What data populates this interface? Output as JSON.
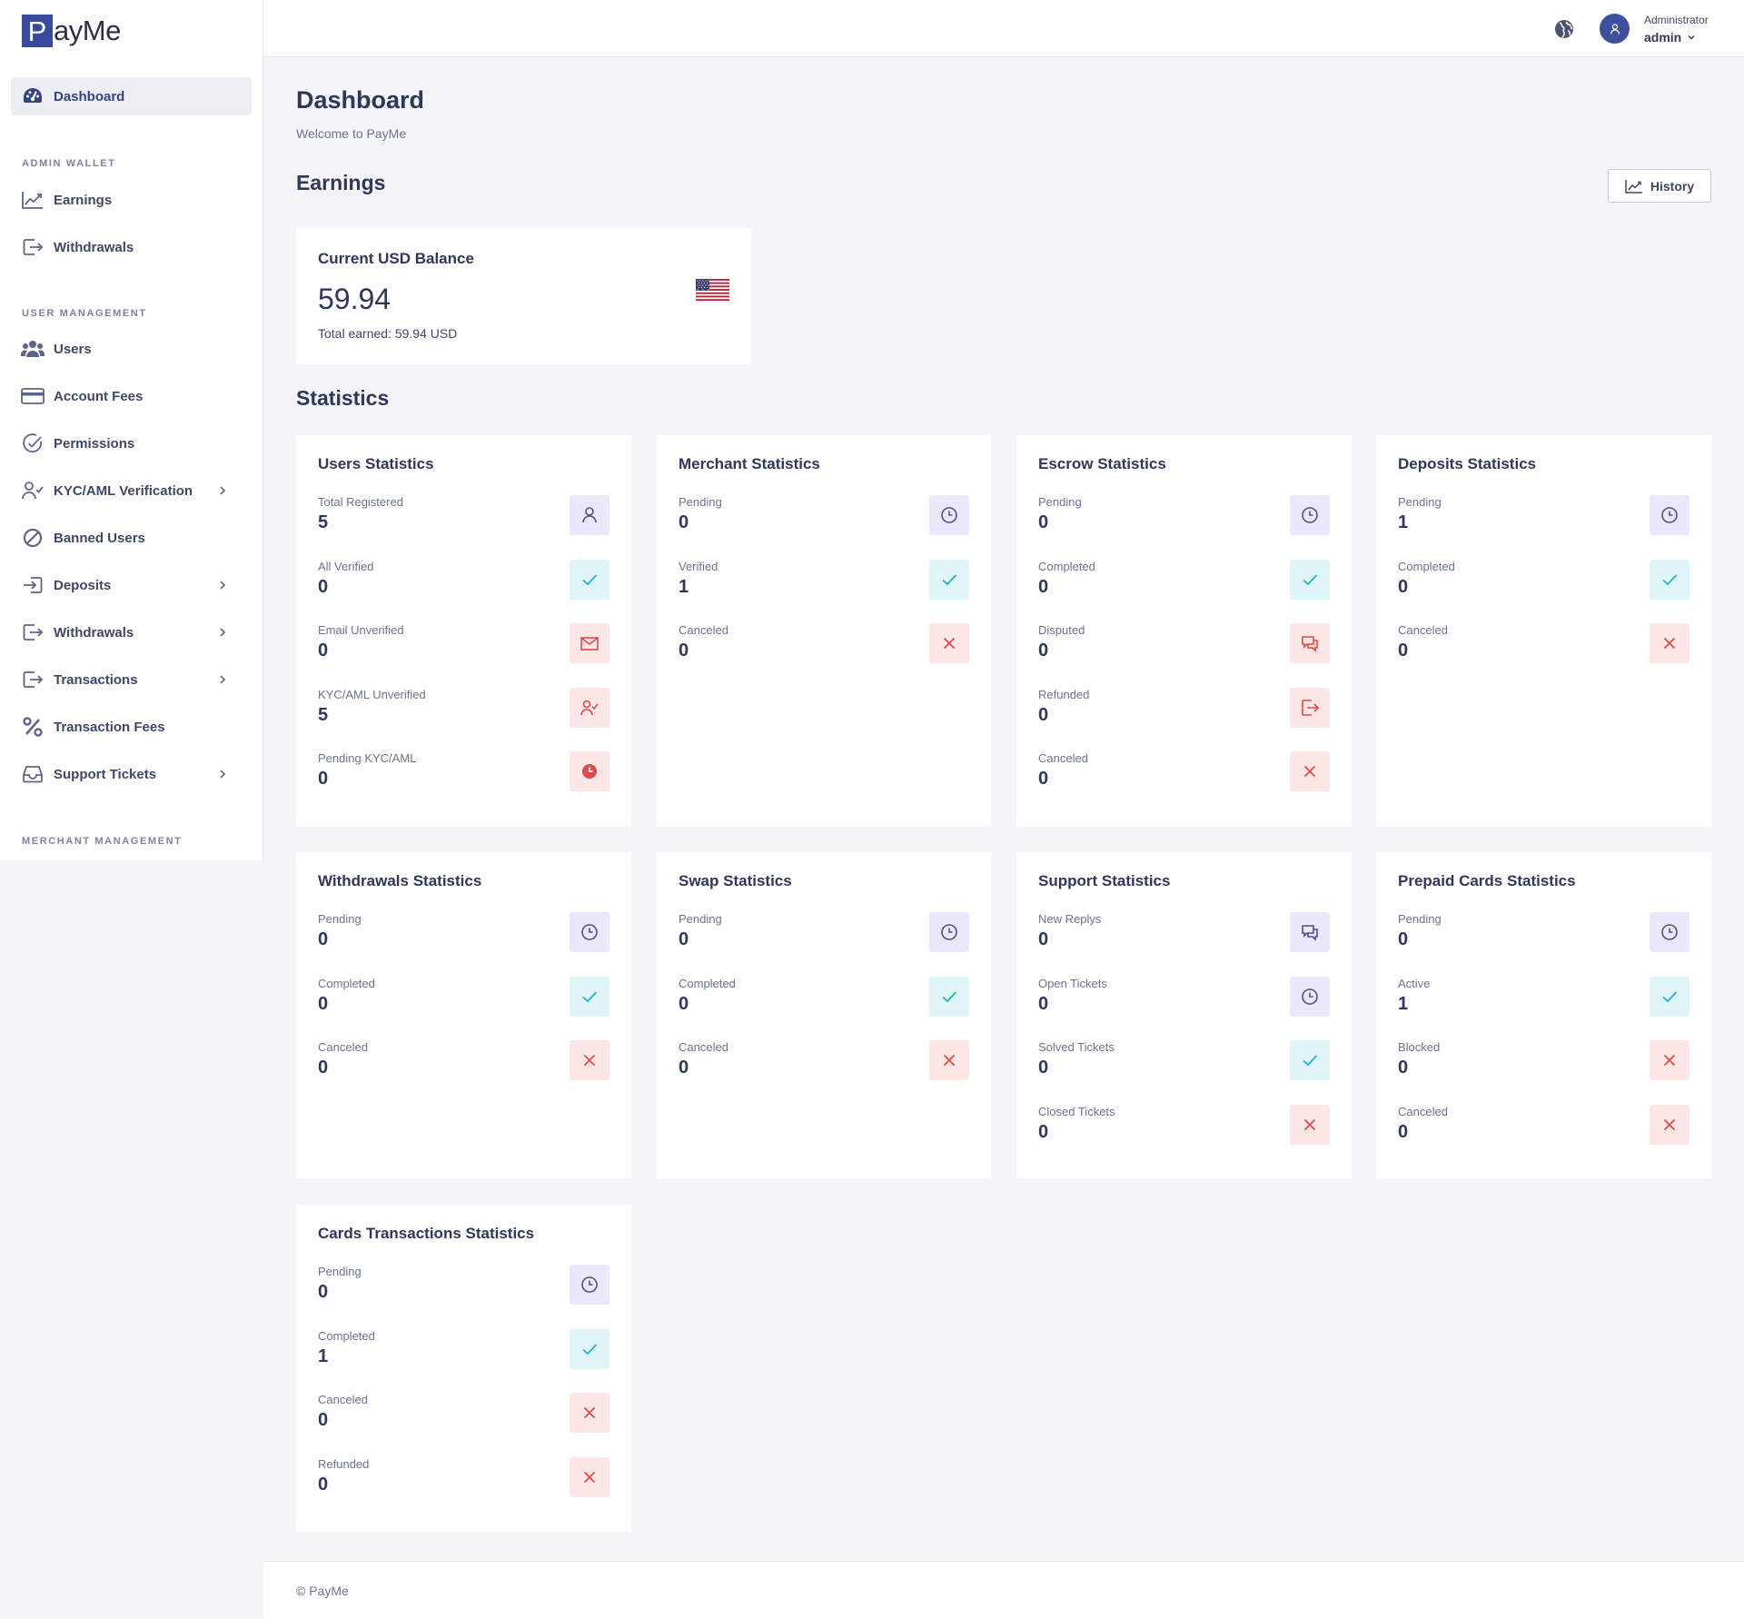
{
  "brand": {
    "logo_letter": "P",
    "logo_rest": "ayMe"
  },
  "sidebar": {
    "dashboard": "Dashboard",
    "section_admin_wallet": "ADMIN WALLET",
    "earnings": "Earnings",
    "withdrawals_wallet": "Withdrawals",
    "section_user_management": "USER MANAGEMENT",
    "users": "Users",
    "account_fees": "Account Fees",
    "permissions": "Permissions",
    "kyc": "KYC/AML Verification",
    "banned_users": "Banned Users",
    "deposits": "Deposits",
    "withdrawals": "Withdrawals",
    "transactions": "Transactions",
    "transaction_fees": "Transaction Fees",
    "support_tickets": "Support Tickets",
    "section_merchant_management": "MERCHANT MANAGEMENT"
  },
  "header": {
    "role": "Administrator",
    "username": "admin"
  },
  "page": {
    "title": "Dashboard",
    "subtitle": "Welcome to PayMe"
  },
  "earnings": {
    "heading": "Earnings",
    "history_button": "History",
    "card_title": "Current USD Balance",
    "amount": "59.94",
    "total": "Total earned: 59.94 USD"
  },
  "statistics": {
    "heading": "Statistics",
    "users": {
      "title": "Users Statistics",
      "items": [
        {
          "label": "Total Registered",
          "value": "5"
        },
        {
          "label": "All Verified",
          "value": "0"
        },
        {
          "label": "Email Unverified",
          "value": "0"
        },
        {
          "label": "KYC/AML Unverified",
          "value": "5"
        },
        {
          "label": "Pending KYC/AML",
          "value": "0"
        }
      ]
    },
    "merchant": {
      "title": "Merchant Statistics",
      "items": [
        {
          "label": "Pending",
          "value": "0"
        },
        {
          "label": "Verified",
          "value": "1"
        },
        {
          "label": "Canceled",
          "value": "0"
        }
      ]
    },
    "escrow": {
      "title": "Escrow Statistics",
      "items": [
        {
          "label": "Pending",
          "value": "0"
        },
        {
          "label": "Completed",
          "value": "0"
        },
        {
          "label": "Disputed",
          "value": "0"
        },
        {
          "label": "Refunded",
          "value": "0"
        },
        {
          "label": "Canceled",
          "value": "0"
        }
      ]
    },
    "deposits": {
      "title": "Deposits Statistics",
      "items": [
        {
          "label": "Pending",
          "value": "1"
        },
        {
          "label": "Completed",
          "value": "0"
        },
        {
          "label": "Canceled",
          "value": "0"
        }
      ]
    },
    "withdrawals": {
      "title": "Withdrawals Statistics",
      "items": [
        {
          "label": "Pending",
          "value": "0"
        },
        {
          "label": "Completed",
          "value": "0"
        },
        {
          "label": "Canceled",
          "value": "0"
        }
      ]
    },
    "swap": {
      "title": "Swap Statistics",
      "items": [
        {
          "label": "Pending",
          "value": "0"
        },
        {
          "label": "Completed",
          "value": "0"
        },
        {
          "label": "Canceled",
          "value": "0"
        }
      ]
    },
    "support": {
      "title": "Support Statistics",
      "items": [
        {
          "label": "New Replys",
          "value": "0"
        },
        {
          "label": "Open Tickets",
          "value": "0"
        },
        {
          "label": "Solved Tickets",
          "value": "0"
        },
        {
          "label": "Closed Tickets",
          "value": "0"
        }
      ]
    },
    "prepaid": {
      "title": "Prepaid Cards Statistics",
      "items": [
        {
          "label": "Pending",
          "value": "0"
        },
        {
          "label": "Active",
          "value": "1"
        },
        {
          "label": "Blocked",
          "value": "0"
        },
        {
          "label": "Canceled",
          "value": "0"
        }
      ]
    },
    "cards_tx": {
      "title": "Cards Transactions Statistics",
      "items": [
        {
          "label": "Pending",
          "value": "0"
        },
        {
          "label": "Completed",
          "value": "1"
        },
        {
          "label": "Canceled",
          "value": "0"
        },
        {
          "label": "Refunded",
          "value": "0"
        }
      ]
    }
  },
  "footer": {
    "text": "© PayMe"
  },
  "colors": {
    "brand": "#3a4a9b",
    "icon_purple": "#4b4f8f",
    "icon_cyan": "#1fb5c4",
    "icon_red": "#e04a4a"
  }
}
